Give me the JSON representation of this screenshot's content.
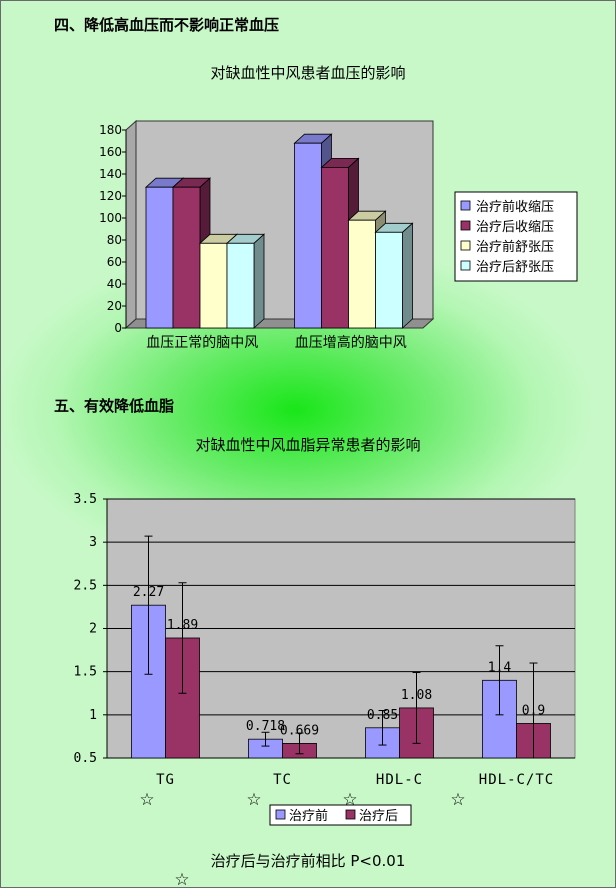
{
  "headings": {
    "bp": "四、降低高血压而不影响正常血压",
    "lipid": "五、有效降低血脂"
  },
  "chart_data": [
    {
      "type": "bar",
      "title": "对缺血性中风患者血压的影响",
      "categories": [
        "血压正常的脑中风",
        "血压增高的脑中风"
      ],
      "series": [
        {
          "name": "治疗前收缩压",
          "values": [
            128,
            168
          ],
          "color": "#9999ff"
        },
        {
          "name": "治疗后收缩压",
          "values": [
            128,
            146
          ],
          "color": "#993366"
        },
        {
          "name": "治疗前舒张压",
          "values": [
            77,
            98
          ],
          "color": "#ffffcc"
        },
        {
          "name": "治疗后舒张压",
          "values": [
            77,
            87
          ],
          "color": "#ccffff"
        }
      ],
      "yticks": [
        0,
        20,
        40,
        60,
        80,
        100,
        120,
        140,
        160,
        180
      ],
      "ylim": [
        0,
        180
      ],
      "grid": false,
      "legend": "right"
    },
    {
      "type": "bar",
      "title": "对缺血性中风血脂异常患者的影响",
      "categories": [
        "TG",
        "TC",
        "HDL-C",
        "HDL-C/TC"
      ],
      "series": [
        {
          "name": "治疗前",
          "values": [
            2.27,
            0.718,
            0.85,
            1.4
          ],
          "labels": [
            "2.27",
            "0.718",
            "0.85",
            "1.4"
          ],
          "err": [
            0.8,
            0.08,
            0.2,
            0.4
          ],
          "color": "#9999ff"
        },
        {
          "name": "治疗后",
          "values": [
            1.89,
            0.669,
            1.08,
            0.9
          ],
          "labels": [
            "1.89",
            "0.669",
            "1.08",
            "0.9"
          ],
          "err": [
            0.64,
            0.12,
            0.41,
            0.7
          ],
          "color": "#993366"
        }
      ],
      "yticks": [
        "0.5",
        "1",
        "1.5",
        "2",
        "2.5",
        "3",
        "3.5"
      ],
      "ylim": [
        0.5,
        3.5
      ],
      "grid": true,
      "legend": "bottom",
      "star": "☆"
    }
  ],
  "footnote": "治疗后与治疗前相比 P<0.01"
}
